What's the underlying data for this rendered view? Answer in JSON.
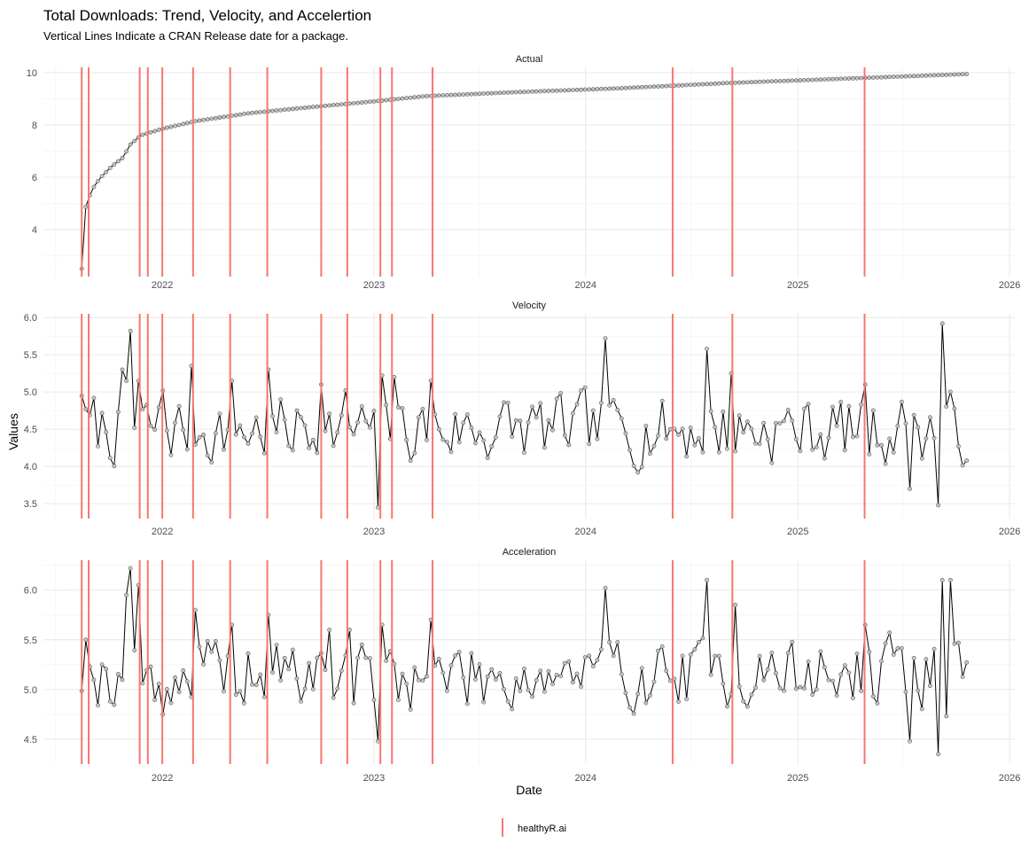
{
  "chart_data": {
    "type": "line",
    "title": "Total Downloads: Trend, Velocity, and Accelertion",
    "subtitle": "Vertical Lines Indicate a CRAN Release date for a package.",
    "xlabel": "Date",
    "ylabel": "Values",
    "x_ticks": [
      "2022",
      "2023",
      "2024",
      "2025",
      "2026"
    ],
    "xlim": [
      "2021-06-10",
      "2026-01-10"
    ],
    "grid": true,
    "legend": {
      "position": "bottom",
      "entries": [
        "healthyR.ai"
      ]
    },
    "release_color": "#F8766D",
    "release_dates": [
      "2021-08-15",
      "2021-08-27",
      "2021-11-23",
      "2021-12-07",
      "2022-01-01",
      "2022-02-23",
      "2022-04-28",
      "2022-07-01",
      "2022-10-02",
      "2022-11-16",
      "2023-01-12",
      "2023-02-01",
      "2023-04-12",
      "2024-05-30",
      "2024-09-10",
      "2025-04-26"
    ],
    "panels": [
      {
        "label": "Actual",
        "ylim": [
          2.2,
          10.2
        ],
        "y_ticks": [
          4,
          6,
          8,
          10
        ],
        "series_kind": "cumulative",
        "anchors": [
          [
            "2021-08-15",
            2.5
          ],
          [
            "2021-08-18",
            3.4
          ],
          [
            "2021-08-21",
            4.8
          ],
          [
            "2021-09-01",
            5.5
          ],
          [
            "2021-09-15",
            5.95
          ],
          [
            "2021-10-05",
            6.4
          ],
          [
            "2021-10-25",
            6.75
          ],
          [
            "2021-11-07",
            7.25
          ],
          [
            "2021-11-25",
            7.6
          ],
          [
            "2022-01-01",
            7.85
          ],
          [
            "2022-03-01",
            8.15
          ],
          [
            "2022-06-01",
            8.45
          ],
          [
            "2022-09-01",
            8.65
          ],
          [
            "2023-01-01",
            8.9
          ],
          [
            "2023-04-01",
            9.1
          ],
          [
            "2023-09-01",
            9.25
          ],
          [
            "2024-03-01",
            9.4
          ],
          [
            "2024-09-01",
            9.6
          ],
          [
            "2025-03-01",
            9.75
          ],
          [
            "2025-10-25",
            9.95
          ]
        ]
      },
      {
        "label": "Velocity",
        "ylim": [
          3.3,
          6.05
        ],
        "y_ticks": [
          3.5,
          4.0,
          4.5,
          5.0,
          5.5,
          6.0
        ],
        "series_kind": "noisy",
        "base": 4.5,
        "seed": 7,
        "noise": 0.26,
        "spikes": [
          [
            "2021-08-15",
            4.95
          ],
          [
            "2021-10-25",
            5.3
          ],
          [
            "2021-11-02",
            5.15
          ],
          [
            "2021-11-08",
            5.82
          ],
          [
            "2021-11-16",
            4.52
          ],
          [
            "2021-11-23",
            5.15
          ],
          [
            "2022-01-01",
            5.02
          ],
          [
            "2022-02-23",
            5.35
          ],
          [
            "2022-04-28",
            5.15
          ],
          [
            "2022-07-01",
            5.3
          ],
          [
            "2022-10-02",
            5.1
          ],
          [
            "2022-11-16",
            5.02
          ],
          [
            "2023-01-05",
            3.45
          ],
          [
            "2023-01-18",
            5.22
          ],
          [
            "2023-02-02",
            5.2
          ],
          [
            "2023-04-12",
            5.15
          ],
          [
            "2024-02-05",
            5.72
          ],
          [
            "2024-07-25",
            5.58
          ],
          [
            "2024-09-10",
            5.25
          ],
          [
            "2025-04-30",
            5.1
          ],
          [
            "2025-07-10",
            3.7
          ],
          [
            "2025-09-01",
            3.48
          ],
          [
            "2025-09-10",
            5.92
          ]
        ]
      },
      {
        "label": "Acceleration",
        "ylim": [
          4.25,
          6.3
        ],
        "y_ticks": [
          4.5,
          5.0,
          5.5,
          6.0
        ],
        "series_kind": "noisy",
        "base": 5.15,
        "seed": 19,
        "noise": 0.2,
        "spikes": [
          [
            "2021-08-25",
            5.5
          ],
          [
            "2021-11-02",
            5.95
          ],
          [
            "2021-11-10",
            6.22
          ],
          [
            "2021-11-18",
            6.05
          ],
          [
            "2022-01-01",
            4.75
          ],
          [
            "2022-03-01",
            5.8
          ],
          [
            "2022-04-28",
            5.65
          ],
          [
            "2022-07-01",
            5.75
          ],
          [
            "2022-10-15",
            5.6
          ],
          [
            "2022-11-23",
            5.6
          ],
          [
            "2023-01-05",
            4.48
          ],
          [
            "2023-01-18",
            5.65
          ],
          [
            "2023-04-12",
            5.7
          ],
          [
            "2024-02-05",
            6.02
          ],
          [
            "2024-07-25",
            6.1
          ],
          [
            "2024-09-15",
            5.85
          ],
          [
            "2025-04-30",
            5.65
          ],
          [
            "2025-07-10",
            4.48
          ],
          [
            "2025-09-01",
            4.35
          ],
          [
            "2025-09-10",
            6.1
          ],
          [
            "2025-09-18",
            6.1
          ]
        ]
      }
    ]
  }
}
